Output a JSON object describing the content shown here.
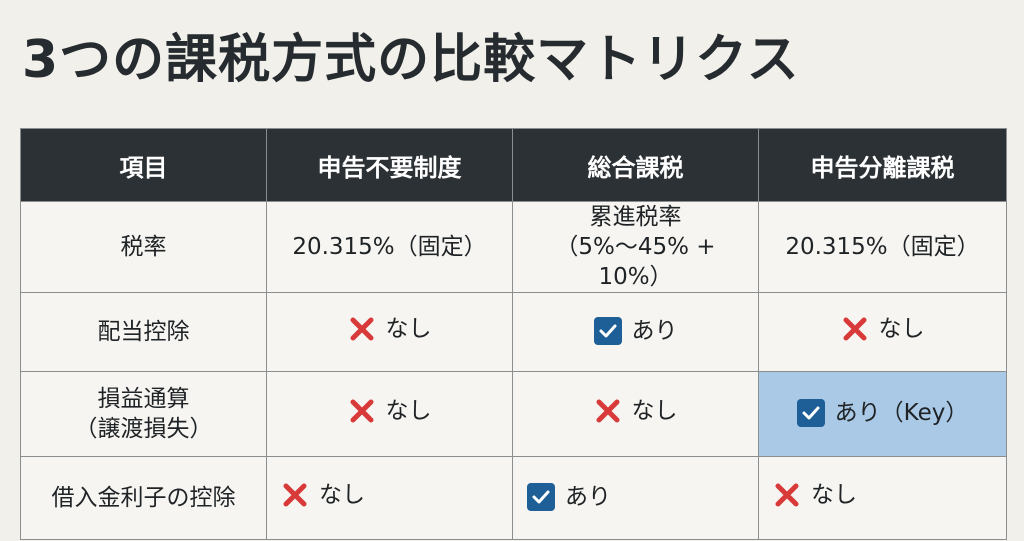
{
  "title": "3つの課税方式の比較マトリクス",
  "colors": {
    "header_bg": "#2b3134",
    "cross": "#d83a3a",
    "check_bg": "#1f5f98",
    "highlight": "#a9c9e6"
  },
  "headers": [
    "項目",
    "申告不要制度",
    "総合課税",
    "申告分離課税"
  ],
  "rows": [
    {
      "label": "税率",
      "cells": [
        {
          "text": "20.315%（固定）"
        },
        {
          "line1": "累進税率",
          "line2": "（5%〜45% + 10%）"
        },
        {
          "text": "20.315%（固定）"
        }
      ]
    },
    {
      "label": "配当控除",
      "cells": [
        {
          "icon": "cross-icon",
          "text": "なし"
        },
        {
          "icon": "check-icon",
          "text": "あり"
        },
        {
          "icon": "cross-icon",
          "text": "なし"
        }
      ]
    },
    {
      "label_line1": "損益通算",
      "label_line2": "（譲渡損失）",
      "cells": [
        {
          "icon": "cross-icon",
          "text": "なし"
        },
        {
          "icon": "cross-icon",
          "text": "なし"
        },
        {
          "icon": "check-icon",
          "text": "あり（Key）"
        }
      ]
    },
    {
      "label": "借入金利子の控除",
      "cells": [
        {
          "icon": "cross-icon",
          "text": "なし"
        },
        {
          "icon": "check-icon",
          "text": "あり"
        },
        {
          "icon": "cross-icon",
          "text": "なし"
        }
      ]
    }
  ]
}
